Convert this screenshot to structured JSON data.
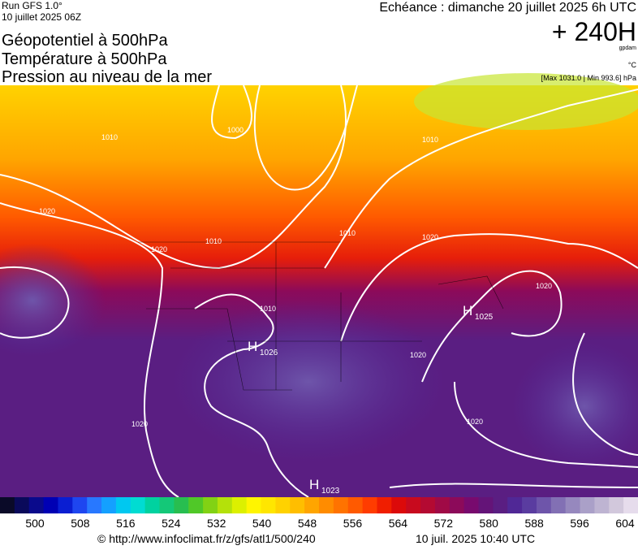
{
  "header": {
    "run": "Run GFS 1.0°",
    "run_date": "10 juillet 2025 06Z",
    "forecast": "Echéance : dimanche 20 juillet 2025 6h UTC",
    "horizon": "+ 240H",
    "unit_geo": "gpdam",
    "unit_temp": "°C",
    "pressure_range": "[Max 1031.0 | Min 993.6] hPa"
  },
  "titles": [
    "Géopotentiel à 500hPa",
    "Température à 500hPa",
    "Pression au niveau de la mer"
  ],
  "map": {
    "isobar_labels": [
      "1010",
      "1000",
      "1010",
      "1020",
      "1020",
      "1010",
      "1010",
      "1020",
      "1010",
      "1020",
      "1020",
      "1020",
      "1020"
    ],
    "highs": [
      {
        "letter": "H",
        "value": "1026"
      },
      {
        "letter": "H",
        "value": "1025"
      },
      {
        "letter": "H",
        "value": "1023"
      }
    ]
  },
  "colorbar": {
    "colors": [
      "#0a0a28",
      "#0a0a5a",
      "#0a0a8c",
      "#0000b4",
      "#0a1ed2",
      "#1e46f0",
      "#2878ff",
      "#14a0ff",
      "#00c8f0",
      "#00dcd2",
      "#00d2a0",
      "#14c878",
      "#28be50",
      "#50c828",
      "#82d214",
      "#b4e10a",
      "#dcf000",
      "#fff500",
      "#ffe600",
      "#ffd200",
      "#ffbe00",
      "#ffa500",
      "#ff8c00",
      "#ff7300",
      "#ff5a00",
      "#ff3c00",
      "#f01e00",
      "#dc0a0a",
      "#c80a1e",
      "#b40a32",
      "#a00a46",
      "#8c0a5a",
      "#780a6e",
      "#641478",
      "#5a1e82",
      "#502896",
      "#5a3ca0",
      "#6e55aa",
      "#8270b4",
      "#9688be",
      "#aaa0c8",
      "#beb4d2",
      "#d2c8dc",
      "#e6dcec"
    ],
    "ticks": [
      500,
      508,
      516,
      524,
      532,
      540,
      548,
      556,
      564,
      572,
      580,
      588,
      596,
      604
    ]
  },
  "footer": {
    "url": "© http://www.infoclimat.fr/z/gfs/atl1/500/240",
    "timestamp": "10 juil. 2025 10:40 UTC"
  }
}
